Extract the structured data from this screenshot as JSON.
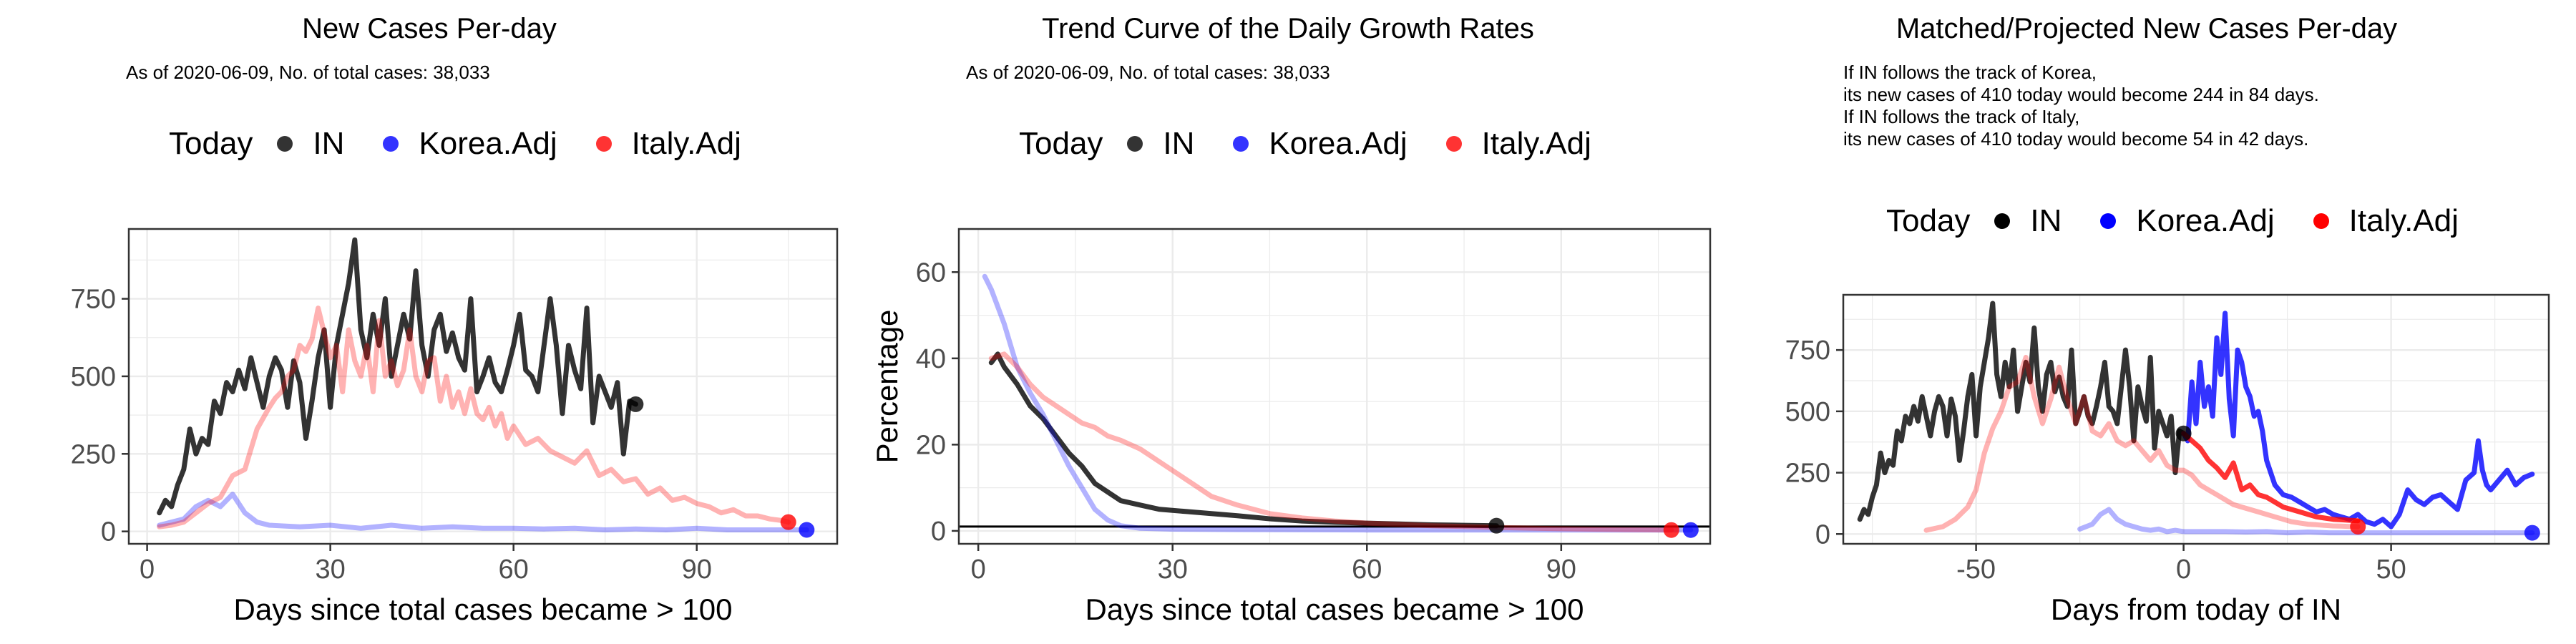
{
  "colors": {
    "IN": "#000000",
    "Korea": "#0000ff",
    "Italy": "#ff0000",
    "grid": "#ebebeb",
    "frame": "#333333"
  },
  "legend": {
    "title": "Today",
    "items": [
      "IN",
      "Korea.Adj",
      "Italy.Adj"
    ]
  },
  "chart_data": [
    {
      "type": "line",
      "title": "New Cases Per-day",
      "subtitle": "As of 2020-06-09, No. of total cases: 38,033",
      "xlabel": "Days since total cases became > 100",
      "ylabel": "",
      "xlim": [
        -3,
        113
      ],
      "ylim": [
        -40,
        975
      ],
      "xticks": [
        0,
        30,
        60,
        90
      ],
      "yticks": [
        0,
        250,
        500,
        750
      ],
      "grid": true,
      "legend_position": "top",
      "series": [
        {
          "name": "IN",
          "today": [
            80,
            410
          ],
          "x": [
            2,
            3,
            4,
            5,
            6,
            7,
            8,
            9,
            10,
            11,
            12,
            13,
            14,
            15,
            16,
            17,
            18,
            19,
            20,
            21,
            22,
            23,
            24,
            25,
            26,
            27,
            28,
            29,
            30,
            31,
            32,
            33,
            34,
            35,
            36,
            37,
            38,
            39,
            40,
            41,
            42,
            43,
            44,
            45,
            46,
            47,
            48,
            49,
            50,
            51,
            52,
            53,
            54,
            55,
            56,
            57,
            58,
            59,
            60,
            61,
            62,
            63,
            64,
            65,
            66,
            67,
            68,
            69,
            70,
            71,
            72,
            73,
            74,
            75,
            76,
            77,
            78,
            79,
            80
          ],
          "y": [
            60,
            100,
            80,
            150,
            200,
            330,
            250,
            300,
            280,
            420,
            380,
            480,
            450,
            520,
            460,
            560,
            480,
            400,
            500,
            560,
            520,
            400,
            550,
            480,
            300,
            420,
            560,
            650,
            400,
            600,
            700,
            800,
            940,
            650,
            560,
            700,
            600,
            750,
            500,
            600,
            700,
            620,
            840,
            600,
            500,
            650,
            700,
            580,
            640,
            560,
            520,
            750,
            450,
            500,
            560,
            480,
            450,
            520,
            600,
            700,
            520,
            500,
            450,
            600,
            750,
            600,
            380,
            600,
            520,
            460,
            720,
            350,
            500,
            450,
            400,
            480,
            250,
            420,
            410
          ]
        },
        {
          "name": "Korea.Adj",
          "today": [
            108,
            5
          ],
          "x": [
            2,
            4,
            6,
            8,
            10,
            12,
            14,
            16,
            18,
            20,
            25,
            30,
            35,
            40,
            45,
            50,
            55,
            60,
            65,
            70,
            75,
            80,
            85,
            90,
            95,
            100,
            105,
            108
          ],
          "y": [
            20,
            30,
            40,
            80,
            100,
            80,
            120,
            60,
            30,
            20,
            15,
            20,
            10,
            20,
            10,
            15,
            10,
            10,
            8,
            10,
            5,
            8,
            5,
            10,
            5,
            5,
            5,
            5
          ]
        },
        {
          "name": "Italy.Adj",
          "today": [
            105,
            30
          ],
          "x": [
            2,
            4,
            6,
            8,
            10,
            12,
            14,
            16,
            18,
            20,
            21,
            22,
            23,
            24,
            25,
            26,
            27,
            28,
            29,
            30,
            31,
            32,
            33,
            34,
            35,
            36,
            37,
            38,
            39,
            40,
            41,
            42,
            43,
            44,
            45,
            46,
            47,
            48,
            49,
            50,
            51,
            52,
            53,
            54,
            55,
            56,
            57,
            58,
            59,
            60,
            62,
            64,
            66,
            68,
            70,
            72,
            74,
            76,
            78,
            80,
            82,
            84,
            86,
            88,
            90,
            92,
            94,
            96,
            98,
            100,
            102,
            104,
            105
          ],
          "y": [
            15,
            20,
            30,
            60,
            90,
            110,
            180,
            200,
            330,
            400,
            430,
            450,
            500,
            520,
            600,
            580,
            620,
            720,
            640,
            560,
            600,
            450,
            650,
            550,
            500,
            600,
            450,
            680,
            500,
            550,
            470,
            520,
            650,
            500,
            450,
            550,
            560,
            420,
            500,
            400,
            450,
            380,
            460,
            380,
            360,
            400,
            340,
            380,
            300,
            340,
            280,
            300,
            260,
            240,
            220,
            260,
            180,
            200,
            160,
            170,
            120,
            140,
            100,
            110,
            90,
            80,
            60,
            70,
            50,
            50,
            40,
            35,
            30
          ]
        }
      ]
    },
    {
      "type": "line",
      "title": "Trend Curve of the Daily Growth Rates",
      "subtitle": "As of 2020-06-09, No. of total cases: 38,033",
      "xlabel": "Days since total cases became > 100",
      "ylabel": "Percentage",
      "xlim": [
        -3,
        113
      ],
      "ylim": [
        -3,
        70
      ],
      "xticks": [
        0,
        30,
        60,
        90
      ],
      "yticks": [
        0,
        20,
        40,
        60
      ],
      "hline": 1,
      "grid": true,
      "legend_position": "top",
      "series": [
        {
          "name": "IN",
          "today": [
            80,
            1.2
          ],
          "x": [
            2,
            3,
            4,
            5,
            6,
            8,
            10,
            12,
            14,
            16,
            18,
            20,
            22,
            25,
            28,
            32,
            36,
            40,
            45,
            50,
            55,
            60,
            65,
            70,
            75,
            80
          ],
          "y": [
            39,
            41,
            38,
            36,
            34,
            29,
            26,
            22,
            18,
            15,
            11,
            9,
            7,
            6,
            5,
            4.5,
            4,
            3.5,
            2.8,
            2.3,
            2,
            1.8,
            1.6,
            1.4,
            1.3,
            1.2
          ]
        },
        {
          "name": "Korea.Adj",
          "today": [
            110,
            0.2
          ],
          "x": [
            1,
            2,
            4,
            6,
            8,
            10,
            12,
            14,
            16,
            18,
            20,
            22,
            25,
            30,
            40,
            60,
            80,
            100,
            110
          ],
          "y": [
            59,
            56,
            48,
            38,
            32,
            27,
            21,
            15,
            10,
            5,
            2.5,
            1.2,
            0.6,
            0.4,
            0.3,
            0.2,
            0.2,
            0.2,
            0.2
          ]
        },
        {
          "name": "Italy.Adj",
          "today": [
            107,
            0.2
          ],
          "x": [
            2,
            4,
            6,
            8,
            10,
            12,
            14,
            16,
            18,
            20,
            22,
            25,
            28,
            30,
            33,
            36,
            40,
            45,
            50,
            55,
            60,
            65,
            70,
            80,
            90,
            100,
            107
          ],
          "y": [
            40,
            41,
            38,
            34,
            31,
            29,
            27,
            25,
            24,
            22,
            21,
            19,
            16,
            14,
            11,
            8,
            6,
            4,
            3,
            2.3,
            1.8,
            1.5,
            1.2,
            0.8,
            0.5,
            0.3,
            0.2
          ]
        }
      ]
    },
    {
      "type": "line",
      "title": "Matched/Projected New Cases Per-day",
      "subtitle": "If IN follows the track of Korea,\nits new cases of 410 today would become 244 in 84 days.\nIf IN follows the track of Italy,\nits new cases of 410 today would become 54 in 42 days.",
      "xlabel": "Days from today of IN",
      "ylabel": "",
      "xlim": [
        -82,
        88
      ],
      "ylim": [
        -40,
        975
      ],
      "xticks": [
        -50,
        0,
        50
      ],
      "yticks": [
        0,
        250,
        500,
        750
      ],
      "grid": true,
      "legend_position": "top",
      "series": [
        {
          "name": "IN",
          "today": [
            0,
            410
          ],
          "x": [
            -78,
            -77,
            -76,
            -75,
            -74,
            -73,
            -72,
            -71,
            -70,
            -69,
            -68,
            -67,
            -66,
            -65,
            -64,
            -63,
            -62,
            -61,
            -60,
            -59,
            -58,
            -57,
            -56,
            -55,
            -54,
            -53,
            -52,
            -51,
            -50,
            -49,
            -48,
            -47,
            -46,
            -45,
            -44,
            -43,
            -42,
            -41,
            -40,
            -39,
            -38,
            -37,
            -36,
            -35,
            -34,
            -33,
            -32,
            -31,
            -30,
            -29,
            -28,
            -27,
            -26,
            -25,
            -24,
            -23,
            -22,
            -21,
            -20,
            -19,
            -18,
            -17,
            -16,
            -15,
            -14,
            -13,
            -12,
            -11,
            -10,
            -9,
            -8,
            -7,
            -6,
            -5,
            -4,
            -3,
            -2,
            -1,
            0
          ],
          "y": [
            60,
            100,
            80,
            150,
            200,
            330,
            250,
            300,
            280,
            420,
            380,
            480,
            450,
            520,
            460,
            560,
            480,
            400,
            500,
            560,
            520,
            400,
            550,
            480,
            300,
            420,
            560,
            650,
            400,
            600,
            700,
            800,
            940,
            650,
            560,
            700,
            600,
            750,
            500,
            600,
            700,
            620,
            840,
            600,
            500,
            650,
            700,
            580,
            640,
            560,
            520,
            750,
            450,
            500,
            560,
            480,
            450,
            520,
            600,
            700,
            520,
            500,
            450,
            600,
            750,
            600,
            380,
            600,
            520,
            460,
            720,
            350,
            500,
            450,
            400,
            480,
            250,
            420,
            410
          ]
        },
        {
          "name": "Korea.Adj",
          "today": [
            84,
            5
          ],
          "x": [
            -25,
            -22,
            -20,
            -18,
            -16,
            -14,
            -12,
            -10,
            -8,
            -6,
            -4,
            -2,
            0,
            5,
            10,
            15,
            20,
            25,
            30,
            35,
            40,
            45,
            50,
            55,
            60,
            65,
            70,
            75,
            80,
            84
          ],
          "y": [
            20,
            40,
            80,
            100,
            60,
            40,
            30,
            20,
            15,
            20,
            10,
            15,
            10,
            10,
            10,
            8,
            10,
            5,
            8,
            5,
            5,
            5,
            5,
            5,
            5,
            5,
            5,
            5,
            5,
            5
          ]
        },
        {
          "name": "Korea.Adj proj",
          "projection": true,
          "x": [
            0,
            1,
            2,
            3,
            4,
            5,
            6,
            7,
            8,
            9,
            10,
            11,
            12,
            13,
            14,
            15,
            16,
            17,
            18,
            19,
            20,
            21,
            22,
            24,
            26,
            28,
            30,
            32,
            34,
            36,
            38,
            40,
            42,
            44,
            46,
            48,
            50,
            52,
            54,
            56,
            58,
            60,
            62,
            64,
            66,
            68,
            70,
            71,
            72,
            73,
            74,
            76,
            78,
            80,
            82,
            84
          ],
          "y": [
            410,
            380,
            620,
            450,
            700,
            520,
            600,
            480,
            800,
            650,
            900,
            550,
            400,
            750,
            700,
            600,
            560,
            480,
            500,
            420,
            300,
            250,
            200,
            160,
            150,
            130,
            110,
            90,
            100,
            80,
            70,
            60,
            80,
            50,
            40,
            60,
            30,
            80,
            180,
            140,
            120,
            150,
            160,
            130,
            100,
            220,
            250,
            380,
            260,
            200,
            180,
            220,
            260,
            200,
            230,
            244
          ]
        },
        {
          "name": "Italy.Adj",
          "today": [
            42,
            30
          ],
          "x": [
            -62,
            -58,
            -55,
            -52,
            -50,
            -48,
            -46,
            -44,
            -42,
            -40,
            -38,
            -36,
            -34,
            -32,
            -30,
            -28,
            -26,
            -24,
            -22,
            -20,
            -18,
            -16,
            -14,
            -12,
            -10,
            -8,
            -6,
            -4,
            -2,
            0,
            2,
            4,
            6,
            8,
            10,
            12,
            14,
            16,
            18,
            20,
            22,
            24,
            26,
            28,
            30,
            32,
            34,
            36,
            38,
            40,
            42
          ],
          "y": [
            15,
            30,
            60,
            110,
            180,
            330,
            430,
            500,
            600,
            620,
            720,
            560,
            450,
            550,
            680,
            550,
            450,
            560,
            420,
            400,
            450,
            380,
            360,
            380,
            340,
            300,
            340,
            280,
            260,
            260,
            240,
            200,
            180,
            160,
            140,
            120,
            110,
            100,
            90,
            80,
            70,
            60,
            50,
            45,
            40,
            38,
            35,
            33,
            32,
            31,
            30
          ]
        },
        {
          "name": "Italy.Adj proj",
          "projection": true,
          "x": [
            0,
            2,
            4,
            6,
            8,
            10,
            12,
            14,
            16,
            18,
            20,
            22,
            24,
            26,
            28,
            30,
            32,
            34,
            36,
            38,
            40,
            42
          ],
          "y": [
            410,
            380,
            350,
            300,
            270,
            230,
            290,
            180,
            200,
            160,
            150,
            130,
            110,
            100,
            90,
            80,
            70,
            65,
            60,
            58,
            56,
            54
          ]
        }
      ]
    }
  ]
}
